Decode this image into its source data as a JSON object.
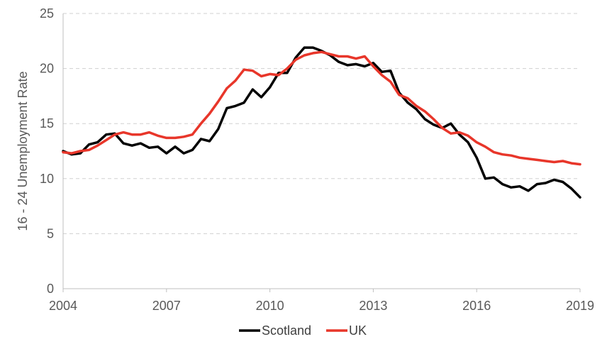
{
  "chart_data": {
    "type": "line",
    "title": "",
    "xlabel": "",
    "ylabel": "16 - 24 Unemployment  Rate",
    "xlim": [
      2004,
      2019
    ],
    "ylim": [
      0,
      25
    ],
    "x_ticks": [
      "2004",
      "2007",
      "2010",
      "2013",
      "2016",
      "2019"
    ],
    "y_ticks": [
      "0",
      "5",
      "10",
      "15",
      "20",
      "25"
    ],
    "grid": "horizontal dashed",
    "legend_position": "bottom",
    "series": [
      {
        "name": "Scotland",
        "color": "#000000",
        "x": [
          2004.0,
          2004.25,
          2004.5,
          2004.75,
          2005.0,
          2005.25,
          2005.5,
          2005.75,
          2006.0,
          2006.25,
          2006.5,
          2006.75,
          2007.0,
          2007.25,
          2007.5,
          2007.75,
          2008.0,
          2008.25,
          2008.5,
          2008.75,
          2009.0,
          2009.25,
          2009.5,
          2009.75,
          2010.0,
          2010.25,
          2010.5,
          2010.75,
          2011.0,
          2011.25,
          2011.5,
          2011.75,
          2012.0,
          2012.25,
          2012.5,
          2012.75,
          2013.0,
          2013.25,
          2013.5,
          2013.75,
          2014.0,
          2014.25,
          2014.5,
          2014.75,
          2015.0,
          2015.25,
          2015.5,
          2015.75,
          2016.0,
          2016.25,
          2016.5,
          2016.75,
          2017.0,
          2017.25,
          2017.5,
          2017.75,
          2018.0,
          2018.25,
          2018.5,
          2018.75,
          2019.0
        ],
        "y": [
          12.5,
          12.2,
          12.3,
          13.1,
          13.3,
          14.0,
          14.1,
          13.2,
          13.0,
          13.2,
          12.8,
          12.9,
          12.3,
          12.9,
          12.3,
          12.6,
          13.6,
          13.4,
          14.5,
          16.4,
          16.6,
          16.9,
          18.1,
          17.4,
          18.3,
          19.6,
          19.6,
          21.0,
          21.9,
          21.9,
          21.6,
          21.2,
          20.6,
          20.3,
          20.4,
          20.2,
          20.5,
          19.7,
          19.8,
          17.8,
          16.9,
          16.3,
          15.4,
          14.9,
          14.6,
          15.0,
          14.0,
          13.3,
          11.9,
          10.0,
          10.1,
          9.5,
          9.2,
          9.3,
          8.9,
          9.5,
          9.6,
          9.9,
          9.7,
          9.1,
          8.3
        ]
      },
      {
        "name": "UK",
        "color": "#e8362a",
        "x": [
          2004.0,
          2004.25,
          2004.5,
          2004.75,
          2005.0,
          2005.25,
          2005.5,
          2005.75,
          2006.0,
          2006.25,
          2006.5,
          2006.75,
          2007.0,
          2007.25,
          2007.5,
          2007.75,
          2008.0,
          2008.25,
          2008.5,
          2008.75,
          2009.0,
          2009.25,
          2009.5,
          2009.75,
          2010.0,
          2010.25,
          2010.5,
          2010.75,
          2011.0,
          2011.25,
          2011.5,
          2011.75,
          2012.0,
          2012.25,
          2012.5,
          2012.75,
          2013.0,
          2013.25,
          2013.5,
          2013.75,
          2014.0,
          2014.25,
          2014.5,
          2014.75,
          2015.0,
          2015.25,
          2015.5,
          2015.75,
          2016.0,
          2016.25,
          2016.5,
          2016.75,
          2017.0,
          2017.25,
          2017.5,
          2017.75,
          2018.0,
          2018.25,
          2018.5,
          2018.75,
          2019.0
        ],
        "y": [
          12.4,
          12.3,
          12.5,
          12.6,
          13.0,
          13.5,
          14.0,
          14.2,
          14.0,
          14.0,
          14.2,
          13.9,
          13.7,
          13.7,
          13.8,
          14.0,
          15.0,
          15.9,
          17.0,
          18.2,
          18.9,
          19.9,
          19.8,
          19.3,
          19.5,
          19.4,
          20.0,
          20.8,
          21.2,
          21.4,
          21.5,
          21.3,
          21.1,
          21.1,
          20.9,
          21.1,
          20.2,
          19.4,
          18.8,
          17.6,
          17.3,
          16.6,
          16.1,
          15.4,
          14.6,
          14.1,
          14.2,
          13.9,
          13.3,
          12.9,
          12.4,
          12.2,
          12.1,
          11.9,
          11.8,
          11.7,
          11.6,
          11.5,
          11.6,
          11.4,
          11.3
        ]
      }
    ]
  }
}
